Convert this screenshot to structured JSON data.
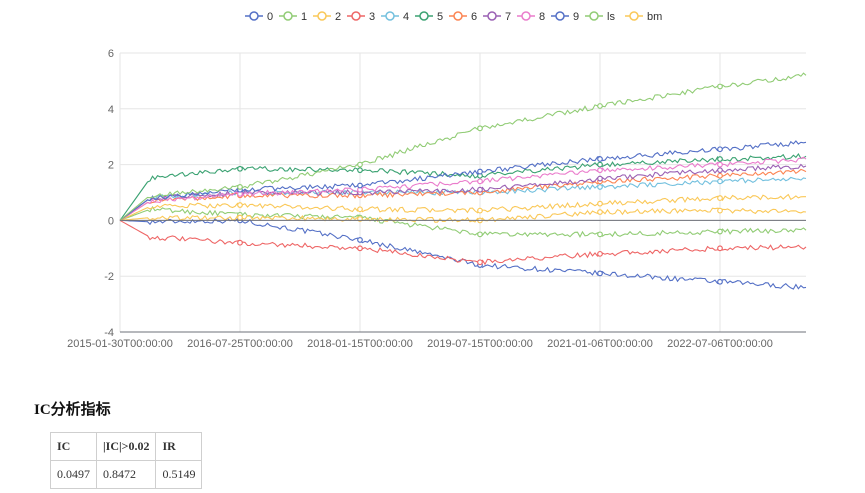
{
  "chart_data": {
    "type": "line",
    "x_ticks": [
      "2015-01-30T00:00:00",
      "2016-07-25T00:00:00",
      "2018-01-15T00:00:00",
      "2019-07-15T00:00:00",
      "2021-01-06T00:00:00",
      "2022-07-06T00:00:00"
    ],
    "ylim": [
      -4,
      6
    ],
    "y_ticks": [
      -4,
      -2,
      0,
      2,
      4,
      6
    ],
    "grid": true,
    "legend_position": "top-center",
    "series": [
      {
        "name": "0",
        "color": "#5470c6",
        "values": [
          0,
          -0.05,
          0.0,
          -0.7,
          -1.6,
          -1.9,
          -2.2,
          -2.4
        ]
      },
      {
        "name": "1",
        "color": "#91cc75",
        "values": [
          0,
          0.4,
          0.2,
          0.1,
          -0.5,
          -0.5,
          -0.4,
          -0.35
        ]
      },
      {
        "name": "2",
        "color": "#fac858",
        "values": [
          0,
          0.5,
          0.55,
          0.4,
          0.35,
          0.6,
          0.8,
          0.85
        ]
      },
      {
        "name": "3",
        "color": "#ee6666",
        "values": [
          0,
          -0.6,
          -0.8,
          -1.0,
          -1.5,
          -1.2,
          -1.0,
          -0.95
        ]
      },
      {
        "name": "4",
        "color": "#73c0de",
        "values": [
          0,
          0.8,
          1.0,
          1.0,
          1.0,
          1.2,
          1.4,
          1.5
        ]
      },
      {
        "name": "5",
        "color": "#3ba272",
        "values": [
          0,
          1.5,
          1.85,
          1.8,
          1.6,
          2.0,
          2.2,
          2.3
        ]
      },
      {
        "name": "6",
        "color": "#fc8452",
        "values": [
          0,
          0.7,
          0.9,
          0.9,
          1.0,
          1.4,
          1.6,
          1.75
        ]
      },
      {
        "name": "7",
        "color": "#9a60b4",
        "values": [
          0,
          0.8,
          1.0,
          1.0,
          1.1,
          1.5,
          1.8,
          1.95
        ]
      },
      {
        "name": "8",
        "color": "#ea7ccc",
        "values": [
          0,
          0.7,
          0.95,
          1.1,
          1.4,
          1.8,
          2.0,
          2.2
        ]
      },
      {
        "name": "9",
        "color": "#5470c6",
        "values": [
          0,
          0.8,
          1.1,
          1.25,
          1.75,
          2.2,
          2.55,
          2.8
        ]
      },
      {
        "name": "ls",
        "color": "#91cc75",
        "values": [
          0,
          0.9,
          1.2,
          2.0,
          3.3,
          4.1,
          4.8,
          5.2
        ]
      },
      {
        "name": "bm",
        "color": "#fac858",
        "values": [
          0,
          0.1,
          0.1,
          0.05,
          0.0,
          0.3,
          0.35,
          0.3
        ]
      }
    ]
  },
  "section_title": "IC分析指标",
  "ic_table": {
    "headers": [
      "IC",
      "|IC|>0.02",
      "IR"
    ],
    "rows": [
      [
        "0.0497",
        "0.8472",
        "0.5149"
      ]
    ]
  }
}
